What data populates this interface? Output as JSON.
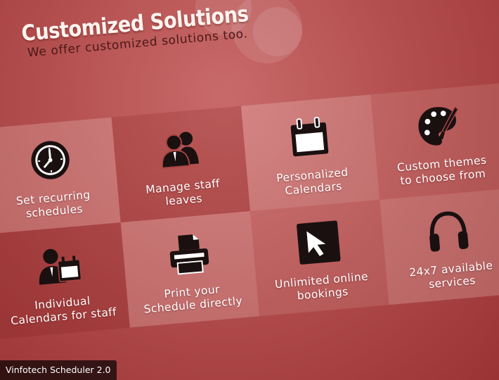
{
  "header": {
    "title": "Customized Solutions",
    "subtitle": "We offer customized solutions too."
  },
  "features": [
    {
      "label": "Set recurring schedules",
      "icon": "clock-icon"
    },
    {
      "label": "Manage staff leaves",
      "icon": "users-icon"
    },
    {
      "label": "Personalized Calendars",
      "icon": "calendar-icon"
    },
    {
      "label": "Custom themes to choose from",
      "icon": "palette-icon"
    },
    {
      "label": "Individual Calendars for staff",
      "icon": "user-calendar-icon"
    },
    {
      "label": "Print your Schedule directly",
      "icon": "printer-icon"
    },
    {
      "label": "Unlimited online bookings",
      "icon": "cursor-icon"
    },
    {
      "label": "24x7 available services",
      "icon": "headphones-icon"
    }
  ],
  "footer": {
    "label": "Vinfotech Scheduler 2.0"
  }
}
